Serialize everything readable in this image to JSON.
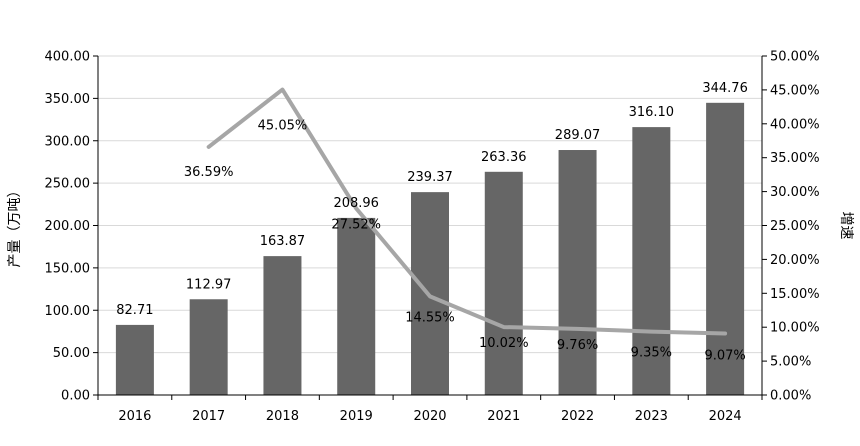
{
  "chart_data": {
    "type": "bar",
    "categories": [
      "2016",
      "2017",
      "2018",
      "2019",
      "2020",
      "2021",
      "2022",
      "2023",
      "2024"
    ],
    "series": [
      {
        "type": "bar",
        "axis": "left",
        "values": [
          82.71,
          112.97,
          163.87,
          208.96,
          239.37,
          263.36,
          289.07,
          316.1,
          344.76
        ],
        "labels": [
          "82.71",
          "112.97",
          "163.87",
          "208.96",
          "239.37",
          "263.36",
          "289.07",
          "316.10",
          "344.76"
        ],
        "color": "#666666"
      },
      {
        "type": "line",
        "axis": "right",
        "values": [
          null,
          36.59,
          45.05,
          27.52,
          14.55,
          10.02,
          9.76,
          9.35,
          9.07
        ],
        "labels": [
          "",
          "36.59%",
          "45.05%",
          "27.52%",
          "14.55%",
          "10.02%",
          "9.76%",
          "9.35%",
          "9.07%"
        ],
        "color": "#a6a6a6"
      }
    ],
    "ylabel": "产量（万吨）",
    "y2label": "增速",
    "ylim": [
      0,
      400
    ],
    "y2lim": [
      0,
      50
    ],
    "yticks": [
      "0.00",
      "50.00",
      "100.00",
      "150.00",
      "200.00",
      "250.00",
      "300.00",
      "350.00",
      "400.00"
    ],
    "y2ticks": [
      "0.00%",
      "5.00%",
      "10.00%",
      "15.00%",
      "20.00%",
      "25.00%",
      "30.00%",
      "35.00%",
      "40.00%",
      "45.00%",
      "50.00%"
    ],
    "grid": true,
    "legend": "none"
  }
}
